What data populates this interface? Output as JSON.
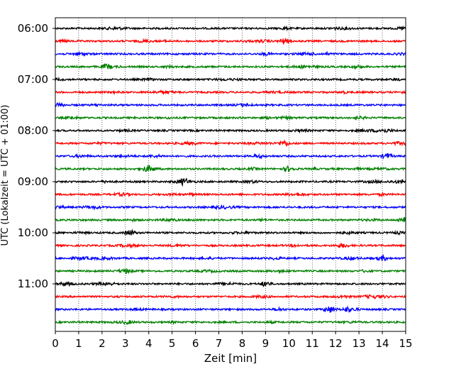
{
  "chart_data": {
    "type": "line",
    "title": "",
    "xlabel": "Zeit  [min]",
    "ylabel": "UTC (Lokalzeit = UTC + 01:00)",
    "xlim": [
      0,
      15
    ],
    "x_ticks": [
      "0",
      "1",
      "2",
      "3",
      "4",
      "5",
      "6",
      "7",
      "8",
      "9",
      "10",
      "11",
      "12",
      "13",
      "14",
      "15"
    ],
    "y_tick_labels": [
      "06:00",
      "07:00",
      "08:00",
      "09:00",
      "10:00",
      "11:00"
    ],
    "trace_interval_minutes": 15,
    "start_time": "06:00",
    "trace_count": 24,
    "colors": [
      "#000000",
      "#ff0000",
      "#0000ff",
      "#008000"
    ],
    "grid": "vertical dotted",
    "description_events": [
      {
        "trace": 1,
        "minute": 9.8
      },
      {
        "trace": 3,
        "minute": 2.2
      },
      {
        "trace": 9,
        "minute": 9.8
      },
      {
        "trace": 10,
        "minute": 14.2
      },
      {
        "trace": 11,
        "minute": 4.0
      },
      {
        "trace": 11,
        "minute": 10.0
      },
      {
        "trace": 12,
        "minute": 5.5
      },
      {
        "trace": 15,
        "minute": 14.9
      },
      {
        "trace": 16,
        "minute": 3.2
      },
      {
        "trace": 18,
        "minute": 14.0
      },
      {
        "trace": 20,
        "minute": 9.0
      },
      {
        "trace": 22,
        "minute": 11.7
      },
      {
        "trace": 22,
        "minute": 12.5
      }
    ]
  }
}
